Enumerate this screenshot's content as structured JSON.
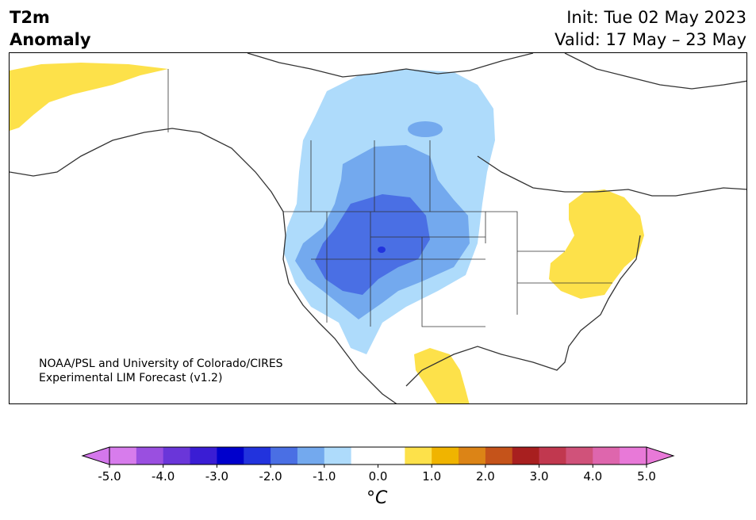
{
  "title": {
    "line1": "T2m",
    "line2": "Anomaly",
    "init": "Init: Tue 02 May 2023",
    "valid": "Valid: 17 May – 23 May"
  },
  "credit": {
    "line1": "NOAA/PSL and University of Colorado/CIRES",
    "line2": "Experimental LIM Forecast (v1.2)"
  },
  "colorbar": {
    "unit": "°C",
    "tick_labels": [
      "-5.0",
      "-4.0",
      "-3.0",
      "-2.0",
      "-1.0",
      "0.0",
      "1.0",
      "2.0",
      "3.0",
      "4.0",
      "5.0"
    ],
    "colors": [
      "#d77cec",
      "#9a4fe0",
      "#6a36d9",
      "#3a1dd4",
      "#0000cc",
      "#2233dd",
      "#4a6fe4",
      "#73a9ee",
      "#aedbfb",
      "#ffffff",
      "#ffffff",
      "#fde14a",
      "#f0b400",
      "#dc8416",
      "#c5531a",
      "#a81f1f",
      "#c1384f",
      "#d0527a",
      "#de66ad",
      "#e879d8"
    ],
    "extend_low_color": "#d477ec",
    "extend_high_color": "#e879d8"
  },
  "legend_colors": {
    "cold_light": "#aedbfb",
    "cold_mid": "#73a9ee",
    "cold_strong": "#4a6fe4",
    "cold_core": "#2233dd",
    "warm_light": "#fde14a",
    "coast": "#333333"
  }
}
